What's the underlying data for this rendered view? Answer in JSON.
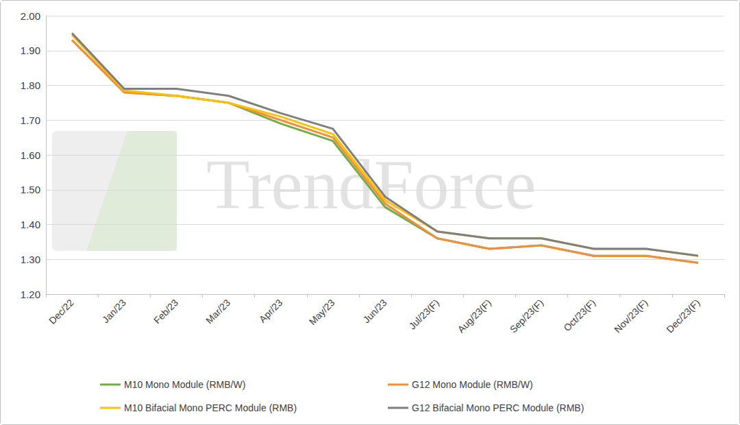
{
  "chart_data": {
    "type": "line",
    "annotations": [
      "TrendForce"
    ],
    "categories": [
      "Dec/22",
      "Jan/23",
      "Feb/23",
      "Mar/23",
      "Apr/23",
      "May/23",
      "Jun/23",
      "Jul/23(F)",
      "Aug/23(F)",
      "Sep/23(F)",
      "Oct/23(F)",
      "Nov/23(F)",
      "Dec/23(F)"
    ],
    "series": [
      {
        "name": "M10 Mono Module (RMB/W)",
        "color": "#70ad47",
        "values": [
          1.93,
          1.78,
          1.77,
          1.75,
          1.69,
          1.64,
          1.45,
          1.36,
          1.33,
          1.34,
          1.31,
          1.31,
          1.29
        ]
      },
      {
        "name": "G12 Mono Module (RMB/W)",
        "color": "#f28e3c",
        "values": [
          1.93,
          1.78,
          1.77,
          1.75,
          1.7,
          1.65,
          1.46,
          1.36,
          1.33,
          1.34,
          1.31,
          1.31,
          1.29
        ]
      },
      {
        "name": "M10 Bifacial Mono PERC Module (RMB)",
        "color": "#ffc000",
        "values": [
          1.945,
          1.785,
          1.77,
          1.75,
          1.71,
          1.66,
          1.47,
          1.38,
          1.36,
          1.36,
          1.33,
          1.33,
          1.31
        ]
      },
      {
        "name": "G12 Bifacial Mono PERC Module (RMB)",
        "color": "#7f7f7f",
        "values": [
          1.95,
          1.79,
          1.79,
          1.77,
          1.72,
          1.675,
          1.48,
          1.38,
          1.36,
          1.36,
          1.33,
          1.33,
          1.31
        ]
      }
    ],
    "ylim": [
      1.2,
      2.0
    ],
    "yticks": [
      {
        "value": 1.2,
        "label": "1.20"
      },
      {
        "value": 1.3,
        "label": "1.30"
      },
      {
        "value": 1.4,
        "label": "1.40"
      },
      {
        "value": 1.5,
        "label": "1.50"
      },
      {
        "value": 1.6,
        "label": "1.60"
      },
      {
        "value": 1.7,
        "label": "1.70"
      },
      {
        "value": 1.8,
        "label": "1.80"
      },
      {
        "value": 1.9,
        "label": "1.90"
      },
      {
        "value": 2.0,
        "label": "2.00"
      }
    ],
    "grid": true,
    "legend": "bottom"
  }
}
